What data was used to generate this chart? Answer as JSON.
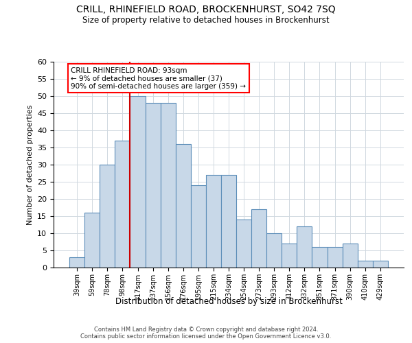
{
  "title1": "CRILL, RHINEFIELD ROAD, BROCKENHURST, SO42 7SQ",
  "title2": "Size of property relative to detached houses in Brockenhurst",
  "xlabel": "Distribution of detached houses by size in Brockenhurst",
  "ylabel": "Number of detached properties",
  "footer1": "Contains HM Land Registry data © Crown copyright and database right 2024.",
  "footer2": "Contains public sector information licensed under the Open Government Licence v3.0.",
  "annotation_title": "CRILL RHINEFIELD ROAD: 93sqm",
  "annotation_line1": "← 9% of detached houses are smaller (37)",
  "annotation_line2": "90% of semi-detached houses are larger (359) →",
  "bar_color": "#c8d8e8",
  "bar_edge_color": "#5b8db8",
  "ref_line_color": "#cc0000",
  "ref_line_x": 3.5,
  "categories": [
    "39sqm",
    "59sqm",
    "78sqm",
    "98sqm",
    "117sqm",
    "137sqm",
    "156sqm",
    "176sqm",
    "195sqm",
    "215sqm",
    "234sqm",
    "254sqm",
    "273sqm",
    "293sqm",
    "312sqm",
    "332sqm",
    "351sqm",
    "371sqm",
    "390sqm",
    "410sqm",
    "429sqm"
  ],
  "values": [
    3,
    16,
    30,
    37,
    50,
    48,
    48,
    36,
    24,
    27,
    27,
    14,
    17,
    10,
    7,
    12,
    6,
    6,
    7,
    2,
    2
  ],
  "ylim": [
    0,
    60
  ],
  "yticks": [
    0,
    5,
    10,
    15,
    20,
    25,
    30,
    35,
    40,
    45,
    50,
    55,
    60
  ],
  "background_color": "#ffffff",
  "grid_color": "#d0d8e0"
}
